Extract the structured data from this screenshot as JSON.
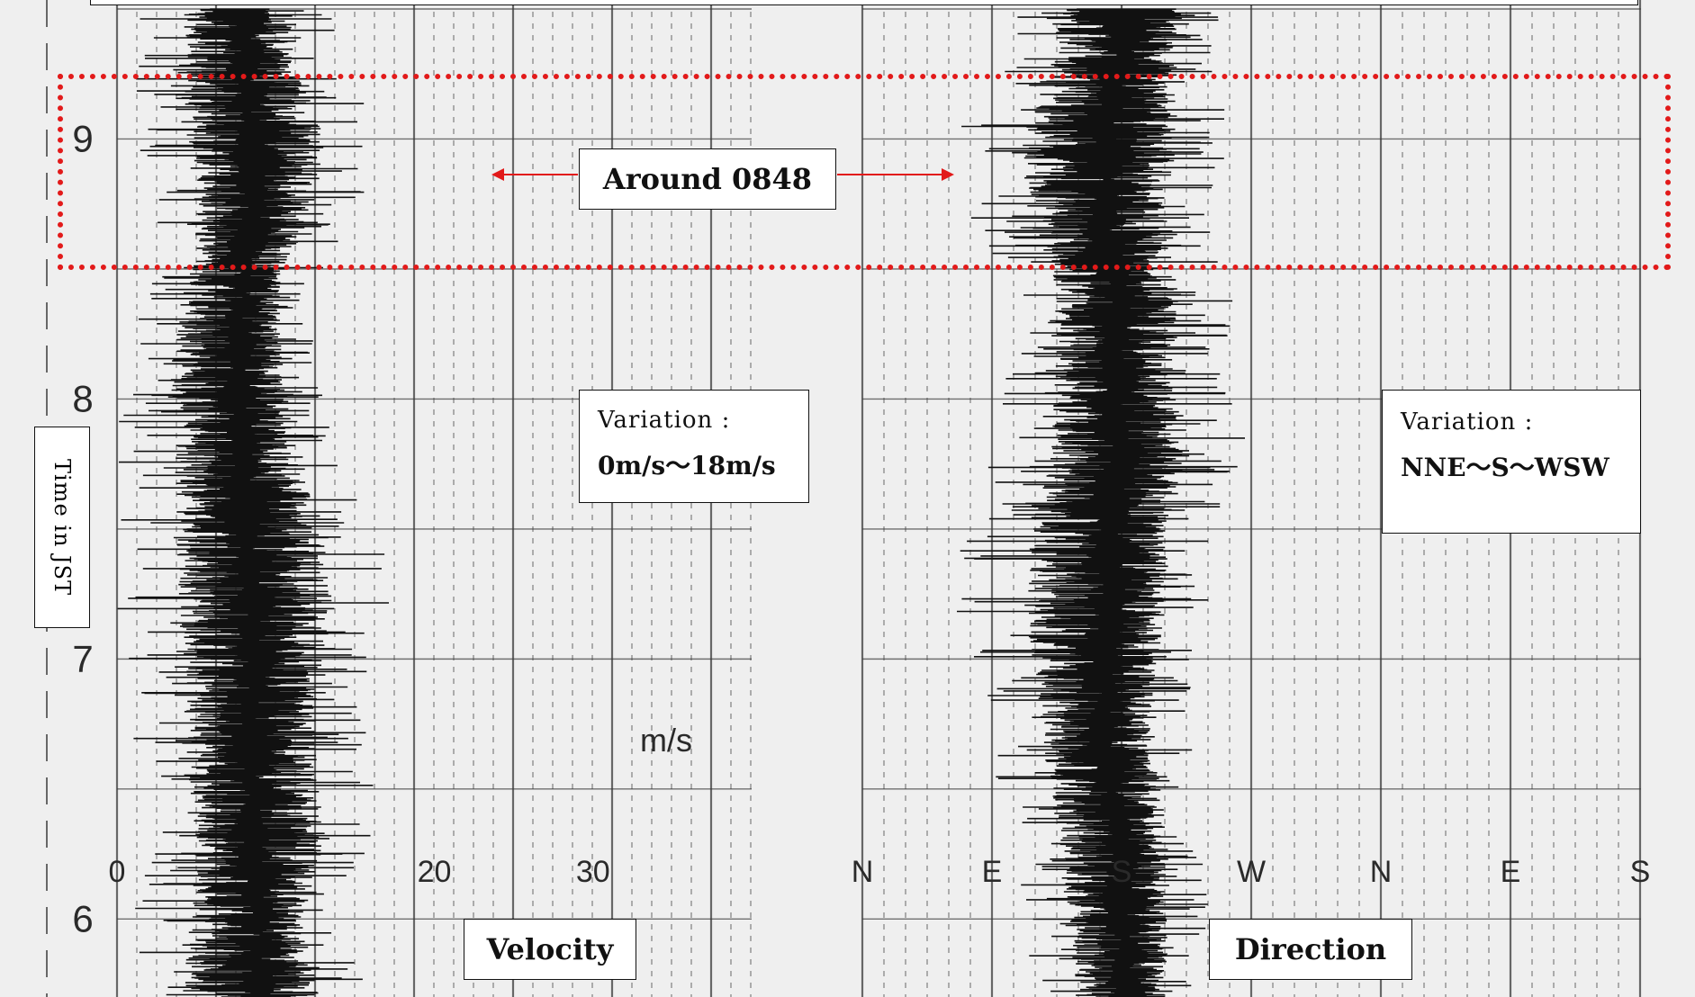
{
  "chart_data": [
    {
      "type": "line",
      "title": "Velocity",
      "xlabel": "m/s",
      "ylabel": "Time in JST",
      "x_ticks": [
        "0",
        "20",
        "30"
      ],
      "y_ticks": [
        "6",
        "7",
        "8",
        "9"
      ],
      "xlim": [
        0,
        40
      ],
      "ylim": [
        5.7,
        9.5
      ],
      "series": [
        {
          "time": [
            5.7,
            6.0,
            6.3,
            6.6,
            6.9,
            7.2,
            7.5,
            7.8,
            8.1,
            8.4,
            8.7,
            9.0,
            9.3,
            9.5
          ],
          "center": [
            9,
            9,
            8.5,
            8.5,
            8.5,
            8.5,
            8,
            8,
            7.5,
            8,
            8.5,
            8.5,
            8,
            8
          ],
          "min": [
            0,
            1,
            2,
            1,
            1,
            0,
            0,
            0,
            0,
            1,
            2,
            1,
            1,
            1
          ],
          "max": [
            16,
            14,
            17,
            16,
            16,
            18,
            17,
            14,
            13,
            12,
            15,
            17,
            14,
            14
          ]
        }
      ],
      "annotation": {
        "title": "Variation :",
        "range": "0m/s～18m/s"
      }
    },
    {
      "type": "line",
      "title": "Direction",
      "x_ticks": [
        "N",
        "E",
        "S",
        "W",
        "N",
        "E",
        "S"
      ],
      "ylim": [
        5.7,
        9.5
      ],
      "series": [
        {
          "time": [
            5.7,
            6.0,
            6.3,
            6.6,
            6.9,
            7.2,
            7.5,
            7.8,
            8.1,
            8.4,
            8.7,
            9.0,
            9.3,
            9.5
          ],
          "center": [
            185,
            180,
            180,
            170,
            170,
            175,
            175,
            180,
            175,
            175,
            170,
            170,
            180,
            180
          ],
          "min": [
            120,
            110,
            100,
            90,
            80,
            60,
            70,
            90,
            100,
            100,
            70,
            60,
            90,
            100
          ],
          "max": [
            230,
            240,
            240,
            230,
            230,
            240,
            240,
            270,
            250,
            260,
            240,
            260,
            250,
            250
          ]
        }
      ],
      "annotation": {
        "title": "Variation :",
        "range": "NNE～S～WSW"
      }
    }
  ],
  "labels": {
    "y_axis_title": "Time in JST",
    "highlight_label": "Around 0848",
    "unit_label": "m/s",
    "velocity_title": "Velocity",
    "direction_title": "Direction",
    "velocity_variation_title": "Variation :",
    "velocity_variation_range": "0m/s～18m/s",
    "direction_variation_title": "Variation :",
    "direction_variation_range": "NNE～S～WSW"
  },
  "colors": {
    "trace": "#111111",
    "grid": "#3a3a3a",
    "highlight": "#e21a1a",
    "paper": "#efefef"
  }
}
